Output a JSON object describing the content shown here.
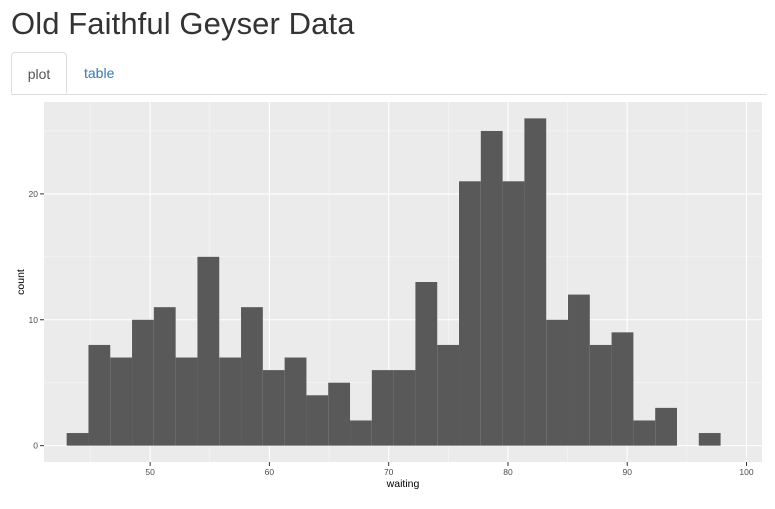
{
  "page": {
    "title": "Old Faithful Geyser Data"
  },
  "tabs": [
    {
      "label": "plot",
      "active": true
    },
    {
      "label": "table",
      "active": false
    }
  ],
  "colors": {
    "panel_background": "#EBEBEB",
    "grid_major": "#FFFFFF",
    "bar_fill": "#595959",
    "axis_text": "#4D4D4D",
    "title_text": "#333333",
    "active_tab_text": "#555555",
    "link_tab_text": "#337AB7"
  },
  "chart_data": {
    "type": "bar",
    "xlabel": "waiting",
    "ylabel": "count",
    "xlim": [
      41.1,
      101.3
    ],
    "ylim": [
      -1.3,
      27.3
    ],
    "x_ticks": [
      50,
      60,
      70,
      80,
      90,
      100
    ],
    "y_ticks": [
      0,
      10,
      20
    ],
    "grid": true,
    "bin_width": 1.8276,
    "bin_start": 43,
    "values": [
      1,
      8,
      7,
      10,
      11,
      7,
      15,
      7,
      11,
      6,
      7,
      4,
      5,
      2,
      6,
      6,
      13,
      8,
      21,
      25,
      21,
      26,
      10,
      12,
      8,
      9,
      2,
      3,
      0,
      1
    ]
  }
}
